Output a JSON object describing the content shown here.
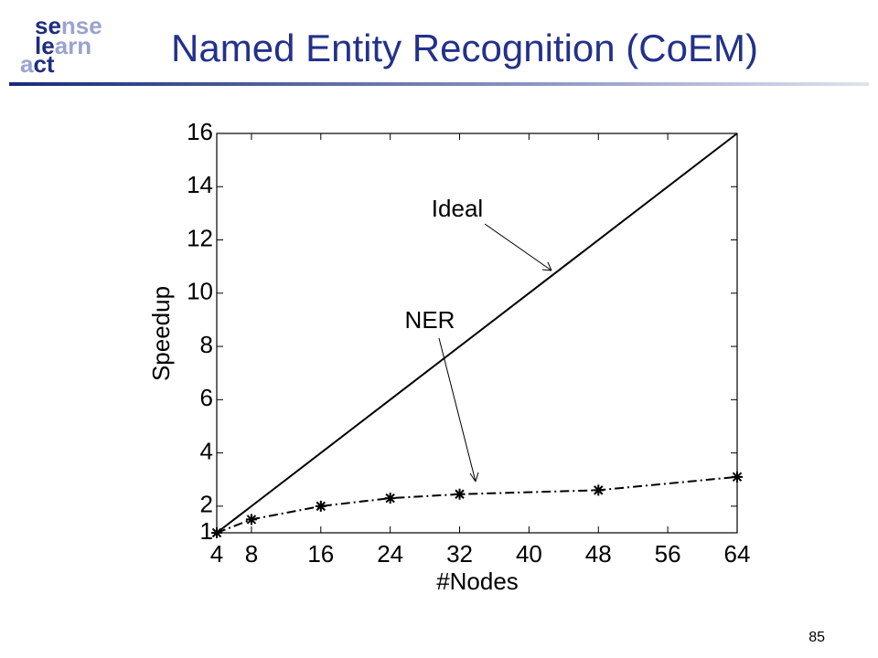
{
  "logo": [
    [
      "se",
      "nse"
    ],
    [
      "le",
      "arn"
    ],
    [
      "a",
      "ct"
    ]
  ],
  "page_number": "85",
  "chart_data": {
    "type": "line",
    "title": "Named Entity Recognition (CoEM)",
    "x_label": "#Nodes",
    "y_label": "Speedup",
    "x": [
      4,
      8,
      16,
      24,
      32,
      48,
      64
    ],
    "series": [
      {
        "name": "Ideal",
        "color": "#000000",
        "style": "solid",
        "values": [
          1,
          2,
          4,
          6,
          8,
          12,
          16
        ]
      },
      {
        "name": "NER",
        "color": "#000000",
        "style": "dashdot",
        "marker": "asterisk",
        "values": [
          1,
          1.5,
          2.0,
          2.3,
          2.45,
          2.6,
          3.1
        ]
      }
    ],
    "xlim": [
      4,
      64
    ],
    "xticks": [
      4,
      8,
      16,
      24,
      32,
      40,
      48,
      56,
      64
    ],
    "ylim": [
      1,
      16
    ],
    "yticks": [
      1,
      2,
      4,
      6,
      8,
      10,
      12,
      14,
      16
    ],
    "grid": false
  }
}
